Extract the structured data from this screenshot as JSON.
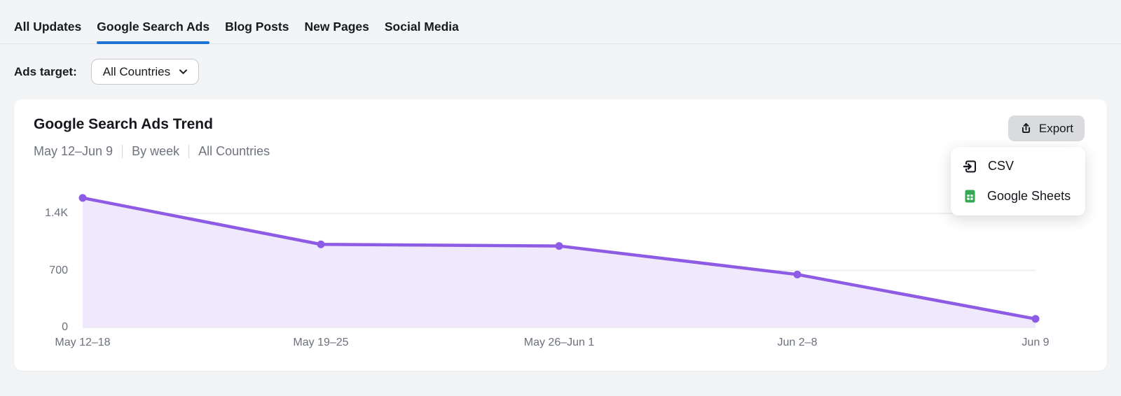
{
  "tabs": {
    "items": [
      {
        "label": "All Updates",
        "active": false
      },
      {
        "label": "Google Search Ads",
        "active": true
      },
      {
        "label": "Blog Posts",
        "active": false
      },
      {
        "label": "New Pages",
        "active": false
      },
      {
        "label": "Social Media",
        "active": false
      }
    ]
  },
  "filters": {
    "ads_target_label": "Ads target:",
    "country_select": {
      "value": "All Countries"
    }
  },
  "card": {
    "title": "Google Search Ads Trend",
    "subtitle": {
      "date_range": "May 12–Jun 9",
      "granularity": "By week",
      "scope": "All Countries"
    },
    "export": {
      "button_label": "Export",
      "menu": [
        {
          "label": "CSV",
          "icon": "csv-file-icon"
        },
        {
          "label": "Google Sheets",
          "icon": "google-sheets-icon"
        }
      ]
    }
  },
  "chart_data": {
    "type": "area",
    "title": "Google Search Ads Trend",
    "series_name": "Google Search Ads",
    "x_tick_labels": [
      "May 12–18",
      "May 19–25",
      "May 26–Jun 1",
      "Jun 2–8",
      "Jun 9"
    ],
    "values": [
      1590,
      1020,
      1000,
      650,
      105
    ],
    "y_ticks": [
      {
        "value": 1400,
        "label": "1.4K"
      },
      {
        "value": 700,
        "label": "700"
      },
      {
        "value": 0,
        "label": "0"
      }
    ],
    "ylim": [
      0,
      1750
    ],
    "grid": "horizontal-only",
    "legend": "none"
  },
  "colors": {
    "accent_blue": "#1d72d2",
    "line_purple": "#8d5be4",
    "fill_purple": "#f0e9fb",
    "gridline": "#e8eaee",
    "sheets_green": "#34a853",
    "export_button_bg": "#d9dbdf"
  }
}
